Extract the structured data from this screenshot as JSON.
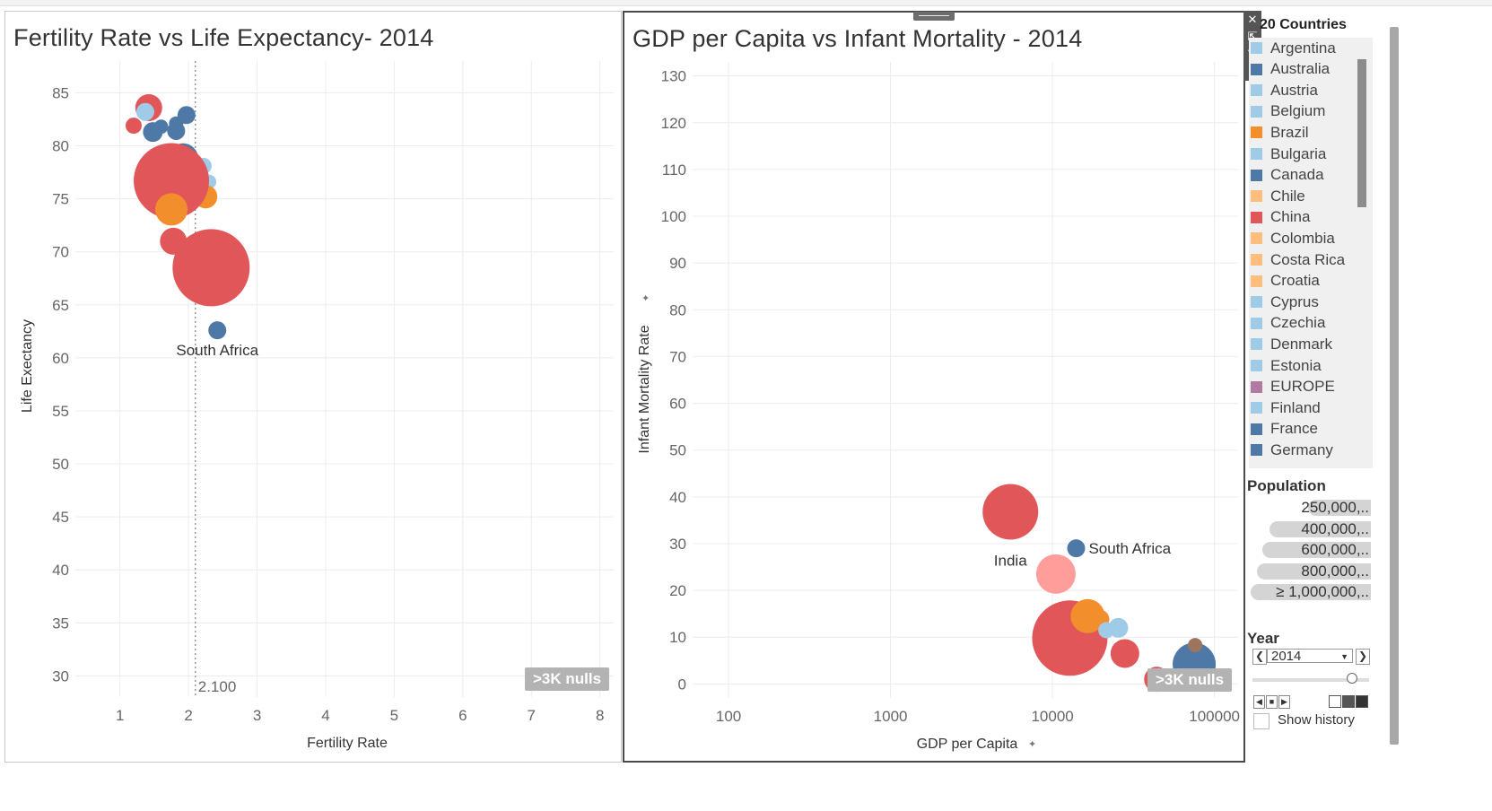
{
  "left_chart": {
    "title": "Fertility Rate vs Life Expectancy- 2014",
    "nulls_label": ">3K nulls",
    "reference_label": "2.100"
  },
  "right_chart": {
    "title": "GDP per Capita vs Infant Mortality - 2014",
    "nulls_label": ">3K nulls"
  },
  "legend": {
    "title": "20 Countries",
    "items": [
      {
        "label": "Argentina",
        "color": "#a0cbe8"
      },
      {
        "label": "Australia",
        "color": "#4e79a7"
      },
      {
        "label": "Austria",
        "color": "#a0cbe8"
      },
      {
        "label": "Belgium",
        "color": "#a0cbe8"
      },
      {
        "label": "Brazil",
        "color": "#f28e2b"
      },
      {
        "label": "Bulgaria",
        "color": "#a0cbe8"
      },
      {
        "label": "Canada",
        "color": "#4e79a7"
      },
      {
        "label": "Chile",
        "color": "#ffbe7d"
      },
      {
        "label": "China",
        "color": "#e15759"
      },
      {
        "label": "Colombia",
        "color": "#ffbe7d"
      },
      {
        "label": "Costa Rica",
        "color": "#ffbe7d"
      },
      {
        "label": "Croatia",
        "color": "#ffbe7d"
      },
      {
        "label": "Cyprus",
        "color": "#a0cbe8"
      },
      {
        "label": "Czechia",
        "color": "#a0cbe8"
      },
      {
        "label": "Denmark",
        "color": "#a0cbe8"
      },
      {
        "label": "Estonia",
        "color": "#a0cbe8"
      },
      {
        "label": "EUROPE",
        "color": "#b07aa1"
      },
      {
        "label": "Finland",
        "color": "#a0cbe8"
      },
      {
        "label": "France",
        "color": "#4e79a7"
      },
      {
        "label": "Germany",
        "color": "#4e79a7"
      }
    ]
  },
  "population_legend": {
    "title": "Population",
    "items": [
      {
        "label": "250,000,..",
        "level": 0.52
      },
      {
        "label": "400,000,..",
        "level": 0.84
      },
      {
        "label": "600,000,..",
        "level": 0.9
      },
      {
        "label": "800,000,..",
        "level": 0.95
      },
      {
        "label": "≥ 1,000,000,..",
        "level": 1.0
      }
    ]
  },
  "year_filter": {
    "title": "Year",
    "value": "2014",
    "show_history_label": "Show history"
  },
  "chart_data": [
    {
      "type": "scatter",
      "title": "Fertility Rate vs Life Expectancy- 2014",
      "xlabel": "Fertility Rate",
      "ylabel": "Life Exectancy",
      "xlim": [
        0.35,
        8.2
      ],
      "ylim": [
        28,
        88
      ],
      "xticks": [
        1,
        2,
        3,
        4,
        5,
        6,
        7,
        8
      ],
      "yticks": [
        30,
        35,
        40,
        45,
        50,
        55,
        60,
        65,
        70,
        75,
        80,
        85
      ],
      "reference_line": {
        "x": 2.1,
        "label": "2.100"
      },
      "points": [
        {
          "x": 1.42,
          "y": 83.6,
          "r": 15,
          "color": "#e15759",
          "label": ""
        },
        {
          "x": 1.37,
          "y": 83.2,
          "r": 10,
          "color": "#a0cbe8",
          "label": ""
        },
        {
          "x": 1.2,
          "y": 81.9,
          "r": 9,
          "color": "#e15759",
          "label": ""
        },
        {
          "x": 1.48,
          "y": 81.3,
          "r": 11,
          "color": "#4e79a7",
          "label": ""
        },
        {
          "x": 1.6,
          "y": 81.8,
          "r": 8,
          "color": "#4e79a7",
          "label": ""
        },
        {
          "x": 1.82,
          "y": 82.1,
          "r": 8,
          "color": "#4e79a7",
          "label": ""
        },
        {
          "x": 1.97,
          "y": 82.9,
          "r": 10,
          "color": "#4e79a7",
          "label": ""
        },
        {
          "x": 1.82,
          "y": 81.4,
          "r": 10,
          "color": "#4e79a7",
          "label": ""
        },
        {
          "x": 1.92,
          "y": 78.8,
          "r": 17,
          "color": "#4e79a7",
          "label": ""
        },
        {
          "x": 2.22,
          "y": 78.1,
          "r": 9,
          "color": "#a0cbe8",
          "label": ""
        },
        {
          "x": 2.3,
          "y": 76.6,
          "r": 8,
          "color": "#a0cbe8",
          "label": ""
        },
        {
          "x": 2.25,
          "y": 75.2,
          "r": 13,
          "color": "#f28e2b",
          "label": ""
        },
        {
          "x": 1.75,
          "y": 76.7,
          "r": 42,
          "color": "#e15759",
          "label": ""
        },
        {
          "x": 1.75,
          "y": 74.0,
          "r": 18,
          "color": "#f28e2b",
          "label": ""
        },
        {
          "x": 1.78,
          "y": 71.0,
          "r": 15,
          "color": "#e15759",
          "label": ""
        },
        {
          "x": 2.33,
          "y": 68.5,
          "r": 43,
          "color": "#e15759",
          "label": ""
        },
        {
          "x": 2.42,
          "y": 62.6,
          "r": 10,
          "color": "#4e79a7",
          "label": "South Africa"
        }
      ]
    },
    {
      "type": "scatter",
      "title": "GDP per Capita vs Infant Mortality - 2014",
      "xlabel": "GDP per Capita",
      "ylabel": "Infant Mortality Rate",
      "xscale": "log",
      "xlim": [
        60,
        140000
      ],
      "ylim": [
        -3,
        133
      ],
      "xticks": [
        100,
        1000,
        10000,
        100000
      ],
      "xticklabels": [
        "100",
        "1000",
        "10000",
        "100000"
      ],
      "yticks": [
        0,
        10,
        20,
        30,
        40,
        50,
        60,
        70,
        80,
        90,
        100,
        110,
        120,
        130
      ],
      "points": [
        {
          "x": 5500,
          "y": 36.8,
          "r": 31,
          "color": "#e15759",
          "label": "India"
        },
        {
          "x": 10500,
          "y": 23.5,
          "r": 22,
          "color": "#ff9d9a",
          "label": ""
        },
        {
          "x": 14000,
          "y": 29.0,
          "r": 10,
          "color": "#4e79a7",
          "label": "South Africa"
        },
        {
          "x": 12800,
          "y": 9.8,
          "r": 42,
          "color": "#e15759",
          "label": ""
        },
        {
          "x": 16500,
          "y": 14.5,
          "r": 19,
          "color": "#f28e2b",
          "label": ""
        },
        {
          "x": 19500,
          "y": 13.8,
          "r": 11,
          "color": "#f28e2b",
          "label": ""
        },
        {
          "x": 21500,
          "y": 11.5,
          "r": 9,
          "color": "#a0cbe8",
          "label": ""
        },
        {
          "x": 25500,
          "y": 12.0,
          "r": 11,
          "color": "#a0cbe8",
          "label": ""
        },
        {
          "x": 28000,
          "y": 6.5,
          "r": 16,
          "color": "#e15759",
          "label": ""
        },
        {
          "x": 44000,
          "y": 1.0,
          "r": 14,
          "color": "#e15759",
          "label": ""
        },
        {
          "x": 75000,
          "y": 4.2,
          "r": 24,
          "color": "#4e79a7",
          "label": ""
        },
        {
          "x": 76000,
          "y": 8.3,
          "r": 8,
          "color": "#9c755f",
          "label": ""
        }
      ]
    }
  ]
}
